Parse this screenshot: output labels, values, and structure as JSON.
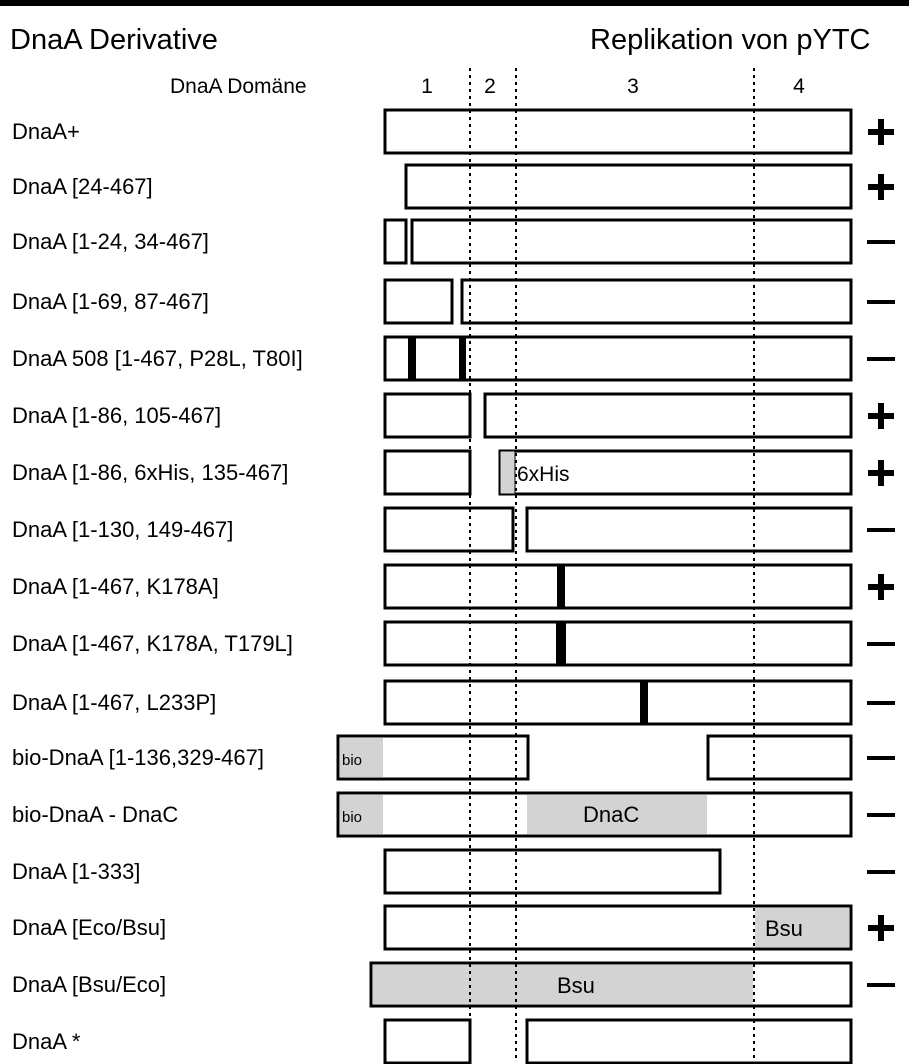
{
  "header": {
    "left_title": "DnaA  Derivative",
    "right_title": "Replikation von pYTC",
    "domain_label": "DnaA Domäne",
    "domains": [
      "1",
      "2",
      "3",
      "4"
    ]
  },
  "constructs": [
    {
      "label": "DnaA+",
      "result": "plus"
    },
    {
      "label": "DnaA [24-467]",
      "result": "plus"
    },
    {
      "label": "DnaA [1-24, 34-467]",
      "result": "minus"
    },
    {
      "label": "DnaA [1-69, 87-467]",
      "result": "minus"
    },
    {
      "label": "DnaA 508 [1-467, P28L, T80I]",
      "result": "minus"
    },
    {
      "label": "DnaA [1-86, 105-467]",
      "result": "plus"
    },
    {
      "label": "DnaA [1-86, 6xHis, 135-467]",
      "result": "plus",
      "tag": "6xHis"
    },
    {
      "label": "DnaA [1-130, 149-467]",
      "result": "minus"
    },
    {
      "label": "DnaA [1-467, K178A]",
      "result": "plus"
    },
    {
      "label": "DnaA [1-467, K178A, T179L]",
      "result": "minus"
    },
    {
      "label": "DnaA [1-467, L233P]",
      "result": "minus"
    },
    {
      "label": "bio-DnaA [1-136,329-467]",
      "result": "minus",
      "tag": "bio"
    },
    {
      "label": "bio-DnaA - DnaC",
      "result": "minus",
      "tag": "bio",
      "tag2": "DnaC"
    },
    {
      "label": "DnaA [1-333]",
      "result": "minus"
    },
    {
      "label": "DnaA [Eco/Bsu]",
      "result": "plus",
      "tag": "Bsu"
    },
    {
      "label": "DnaA [Bsu/Eco]",
      "result": "minus",
      "tag": "Bsu"
    },
    {
      "label": "DnaA *",
      "result": "none"
    }
  ],
  "colors": {
    "line": "#000000",
    "fill": "#ffffff",
    "gray": "#d3d3d3"
  },
  "icons": {
    "plus": "plus-icon",
    "minus": "minus-icon"
  }
}
